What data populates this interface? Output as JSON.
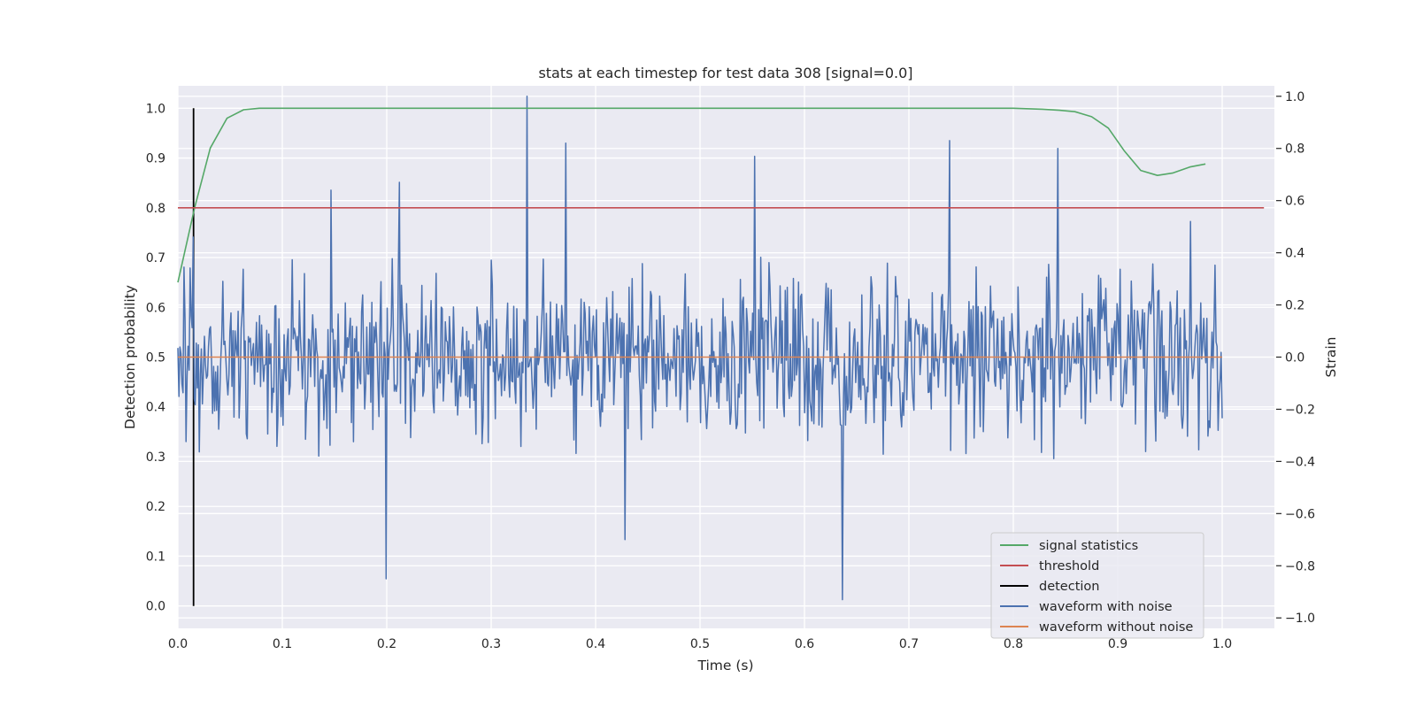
{
  "chart_data": {
    "type": "line",
    "title": "stats at each timestep for test data 308 [signal=0.0]",
    "xlabel": "Time (s)",
    "ylabel": "Detection probability",
    "y2label": "Strain",
    "xlim": [
      0.0,
      1.05
    ],
    "ylim": [
      -0.045,
      1.045
    ],
    "y2lim": [
      -1.04,
      1.04
    ],
    "xticks": [
      "0.0",
      "0.1",
      "0.2",
      "0.3",
      "0.4",
      "0.5",
      "0.6",
      "0.7",
      "0.8",
      "0.9",
      "1.0"
    ],
    "yticks": [
      "0.0",
      "0.1",
      "0.2",
      "0.3",
      "0.4",
      "0.5",
      "0.6",
      "0.7",
      "0.8",
      "0.9",
      "1.0"
    ],
    "y2ticks": [
      "−1.0",
      "−0.8",
      "−0.6",
      "−0.4",
      "−0.2",
      "0.0",
      "0.2",
      "0.4",
      "0.6",
      "0.8",
      "1.0"
    ],
    "grid": true,
    "legend_position": "lower-right",
    "series": [
      {
        "name": "signal statistics",
        "color": "#55a868",
        "axis": "left",
        "x": [
          0.0,
          0.016,
          0.031,
          0.047,
          0.063,
          0.078,
          0.1,
          0.2,
          0.3,
          0.4,
          0.5,
          0.6,
          0.7,
          0.8,
          0.828,
          0.844,
          0.859,
          0.875,
          0.891,
          0.906,
          0.922,
          0.938,
          0.953,
          0.969,
          0.984
        ],
        "values": [
          0.65,
          0.8,
          0.92,
          0.98,
          0.997,
          1.0,
          1.0,
          1.0,
          1.0,
          1.0,
          1.0,
          1.0,
          1.0,
          1.0,
          0.998,
          0.996,
          0.993,
          0.983,
          0.96,
          0.915,
          0.875,
          0.865,
          0.87,
          0.882,
          0.888
        ]
      },
      {
        "name": "threshold",
        "color": "#c44e52",
        "axis": "left",
        "x": [
          0.0,
          1.04
        ],
        "values": [
          0.8,
          0.8
        ]
      },
      {
        "name": "detection",
        "color": "#000000",
        "axis": "left",
        "x": [
          0.015,
          0.015
        ],
        "values": [
          0.0,
          1.0
        ]
      },
      {
        "name": "waveform with noise",
        "color": "#4c72b0",
        "axis": "right",
        "x_range": [
          0.0,
          1.0
        ],
        "sample_count": 1024,
        "peaks": [
          {
            "x": 0.015,
            "value": 0.46
          },
          {
            "x": 0.055,
            "value": 0.1
          },
          {
            "x": 0.147,
            "value": 0.64
          },
          {
            "x": 0.199,
            "value": -0.85
          },
          {
            "x": 0.212,
            "value": 0.67
          },
          {
            "x": 0.334,
            "value": 1.0
          },
          {
            "x": 0.371,
            "value": 0.82
          },
          {
            "x": 0.428,
            "value": -0.7
          },
          {
            "x": 0.552,
            "value": 0.77
          },
          {
            "x": 0.636,
            "value": -0.93
          },
          {
            "x": 0.739,
            "value": 0.83
          },
          {
            "x": 0.843,
            "value": 0.8
          },
          {
            "x": 0.97,
            "value": 0.52
          }
        ],
        "typical_range": [
          -0.45,
          0.45
        ]
      },
      {
        "name": "waveform without noise",
        "color": "#dd8452",
        "axis": "right",
        "x": [
          0.0,
          1.0
        ],
        "values": [
          0.0,
          0.0
        ]
      }
    ]
  }
}
